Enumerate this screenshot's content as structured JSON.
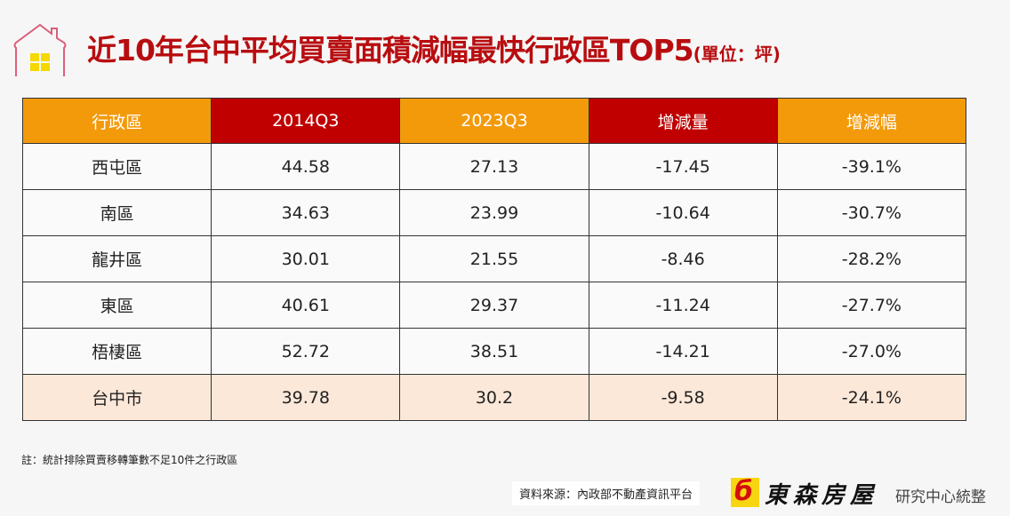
{
  "header": {
    "title": "近10年台中平均買賣面積減幅最快行政區TOP5",
    "unit": "(單位：坪)",
    "icon": "house-icon"
  },
  "colors": {
    "title": "#b80d10",
    "header_orange": "#f39a0b",
    "header_red": "#c00000",
    "total_row": "#fce8d9"
  },
  "chart_data": {
    "type": "table",
    "columns": [
      "行政區",
      "2014Q3",
      "2023Q3",
      "增減量",
      "增減幅"
    ],
    "rows": [
      [
        "西屯區",
        "44.58",
        "27.13",
        "-17.45",
        "-39.1%"
      ],
      [
        "南區",
        "34.63",
        "23.99",
        "-10.64",
        "-30.7%"
      ],
      [
        "龍井區",
        "30.01",
        "21.55",
        "-8.46",
        "-28.2%"
      ],
      [
        "東區",
        "40.61",
        "29.37",
        "-11.24",
        "-27.7%"
      ],
      [
        "梧棲區",
        "52.72",
        "38.51",
        "-14.21",
        "-27.0%"
      ],
      [
        "台中市",
        "39.78",
        "30.2",
        "-9.58",
        "-24.1%"
      ]
    ]
  },
  "footer": {
    "note": "註：統計排除買賣移轉筆數不足10件之行政區",
    "source": "資料來源：內政部不動產資訊平台",
    "brand": "東森房屋",
    "brand_sub": "研究中心統整"
  }
}
